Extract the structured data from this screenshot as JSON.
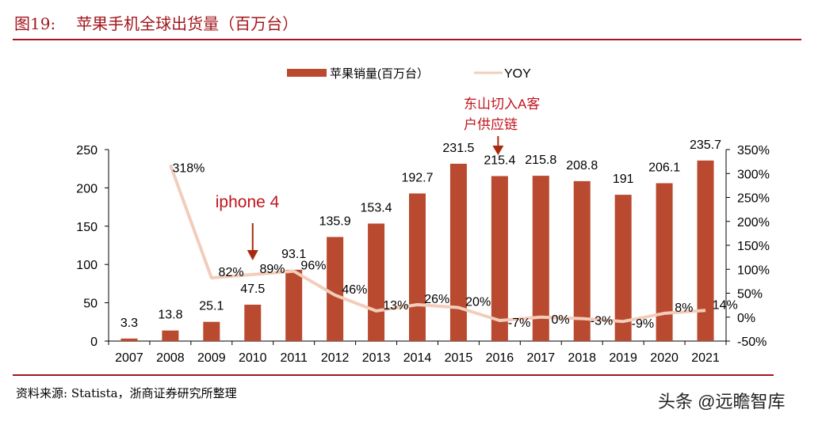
{
  "header": {
    "figure_no": "图19:",
    "title": "苹果手机全球出货量（百万台）"
  },
  "footer": {
    "source": "资料来源: Statista，浙商证券研究所整理",
    "watermark": "头条 @远瞻智库"
  },
  "colors": {
    "bar": "#b94a2f",
    "line": "#f2cdbb",
    "accent": "#a3161c"
  },
  "chart_data": {
    "type": "bar+line",
    "categories": [
      "2007",
      "2008",
      "2009",
      "2010",
      "2011",
      "2012",
      "2013",
      "2014",
      "2015",
      "2016",
      "2017",
      "2018",
      "2019",
      "2020",
      "2021"
    ],
    "series": [
      {
        "name": "苹果销量(百万台）",
        "type": "bar",
        "axis": "left",
        "values": [
          3.3,
          13.8,
          25.1,
          47.5,
          93.1,
          135.9,
          153.4,
          192.7,
          231.5,
          215.4,
          215.8,
          208.8,
          191,
          206.1,
          235.7
        ],
        "labels": [
          "3.3",
          "13.8",
          "25.1",
          "47.5",
          "93.1",
          "135.9",
          "153.4",
          "192.7",
          "231.5",
          "215.4",
          "215.8",
          "208.8",
          "191",
          "206.1",
          "235.7"
        ]
      },
      {
        "name": "YOY",
        "type": "line",
        "axis": "right",
        "values": [
          null,
          318,
          82,
          89,
          96,
          46,
          13,
          26,
          20,
          -7,
          0,
          -3,
          -9,
          8,
          14
        ],
        "labels": [
          "",
          "318%",
          "82%",
          "89%",
          "96%",
          "46%",
          "13%",
          "26%",
          "20%",
          "-7%",
          "0%",
          "-3%",
          "-9%",
          "8%",
          "14%"
        ]
      }
    ],
    "y_left": {
      "ylim": [
        0,
        250
      ],
      "ticks": [
        "0",
        "50",
        "100",
        "150",
        "200",
        "250"
      ]
    },
    "y_right": {
      "ylim": [
        -50,
        350
      ],
      "ticks": [
        "-50%",
        "0%",
        "50%",
        "100%",
        "150%",
        "200%",
        "250%",
        "300%",
        "350%"
      ]
    },
    "legend": "top",
    "grid": false,
    "annotations": [
      {
        "text": "iphone 4",
        "category": "2010"
      },
      {
        "text_lines": [
          "东山切入A客",
          "户供应链"
        ],
        "category": "2016"
      }
    ]
  }
}
